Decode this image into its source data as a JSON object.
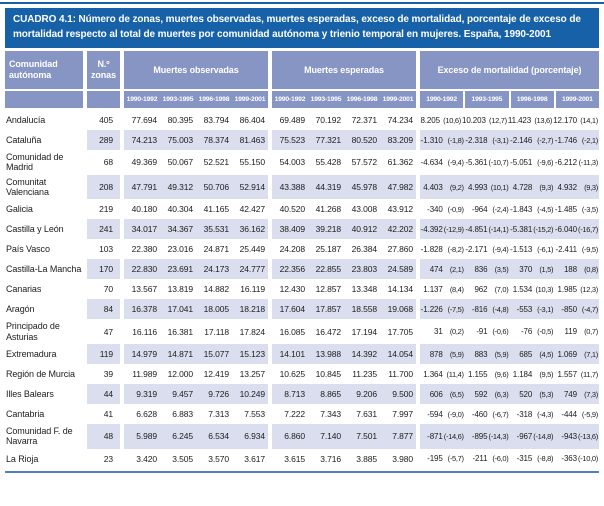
{
  "title": "CUADRO 4.1: Número de zonas, muertes observadas, muertes esperadas, exceso de mortalidad, porcentaje de exceso de mortalidad respecto al total de muertes por comunidad autónoma y trienio temporal en mujeres. España, 1990-2001",
  "colors": {
    "title_bar": "#1761A8",
    "header_cells": "#8795C5",
    "row_stripe": "#DADEEE",
    "top_rule": "#1761A8",
    "bottom_line": "#4D7EBD"
  },
  "table": {
    "col_headers": {
      "community": "Comunidad autónoma",
      "zones": "N.º zonas",
      "observed": "Muertes observadas",
      "expected": "Muertes esperadas",
      "excess": "Exceso de mortalidad (porcentaje)"
    },
    "periods": [
      "1990-1992",
      "1993-1995",
      "1996-1998",
      "1999-2001"
    ],
    "rows": [
      {
        "name": "Andalucía",
        "zones": "405",
        "observed": [
          "77.694",
          "80.395",
          "83.794",
          "86.404"
        ],
        "expected": [
          "69.489",
          "70.192",
          "72.371",
          "74.234"
        ],
        "excess": [
          [
            "8.205",
            "(10,6)"
          ],
          [
            "10.203",
            "(12,7)"
          ],
          [
            "11.423",
            "(13,6)"
          ],
          [
            "12.170",
            "(14,1)"
          ]
        ]
      },
      {
        "name": "Cataluña",
        "zones": "289",
        "observed": [
          "74.213",
          "75.003",
          "78.374",
          "81.463"
        ],
        "expected": [
          "75.523",
          "77.321",
          "80.520",
          "83.209"
        ],
        "excess": [
          [
            "-1.310",
            "(-1,8)"
          ],
          [
            "-2.318",
            "(-3,1)"
          ],
          [
            "-2.146",
            "(-2,7)"
          ],
          [
            "-1.746",
            "(-2,1)"
          ]
        ]
      },
      {
        "name": "Comunidad de Madrid",
        "zones": "68",
        "observed": [
          "49.369",
          "50.067",
          "52.521",
          "55.150"
        ],
        "expected": [
          "54.003",
          "55.428",
          "57.572",
          "61.362"
        ],
        "excess": [
          [
            "-4.634",
            "(-9,4)"
          ],
          [
            "-5.361",
            "(-10,7)"
          ],
          [
            "-5.051",
            "(-9,6)"
          ],
          [
            "-6.212",
            "(-11,3)"
          ]
        ]
      },
      {
        "name": "Comunitat Valenciana",
        "zones": "208",
        "observed": [
          "47.791",
          "49.312",
          "50.706",
          "52.914"
        ],
        "expected": [
          "43.388",
          "44.319",
          "45.978",
          "47.982"
        ],
        "excess": [
          [
            "4.403",
            "(9,2)"
          ],
          [
            "4.993",
            "(10,1)"
          ],
          [
            "4.728",
            "(9,3)"
          ],
          [
            "4.932",
            "(9,3)"
          ]
        ]
      },
      {
        "name": "Galicia",
        "zones": "219",
        "observed": [
          "40.180",
          "40.304",
          "41.165",
          "42.427"
        ],
        "expected": [
          "40.520",
          "41.268",
          "43.008",
          "43.912"
        ],
        "excess": [
          [
            "-340",
            "(-0,9)"
          ],
          [
            "-964",
            "(-2,4)"
          ],
          [
            "-1.843",
            "(-4,5)"
          ],
          [
            "-1.485",
            "(-3,5)"
          ]
        ]
      },
      {
        "name": "Castilla y León",
        "zones": "241",
        "observed": [
          "34.017",
          "34.367",
          "35.531",
          "36.162"
        ],
        "expected": [
          "38.409",
          "39.218",
          "40.912",
          "42.202"
        ],
        "excess": [
          [
            "-4.392",
            "(-12,9)"
          ],
          [
            "-4.851",
            "(-14,1)"
          ],
          [
            "-5.381",
            "(-15,2)"
          ],
          [
            "-6.040",
            "(-16,7)"
          ]
        ]
      },
      {
        "name": "País Vasco",
        "zones": "103",
        "observed": [
          "22.380",
          "23.016",
          "24.871",
          "25.449"
        ],
        "expected": [
          "24.208",
          "25.187",
          "26.384",
          "27.860"
        ],
        "excess": [
          [
            "-1.828",
            "(-8,2)"
          ],
          [
            "-2.171",
            "(-9,4)"
          ],
          [
            "-1.513",
            "(-6,1)"
          ],
          [
            "-2.411",
            "(-9,5)"
          ]
        ]
      },
      {
        "name": "Castilla-La Mancha",
        "zones": "170",
        "observed": [
          "22.830",
          "23.691",
          "24.173",
          "24.777"
        ],
        "expected": [
          "22.356",
          "22.855",
          "23.803",
          "24.589"
        ],
        "excess": [
          [
            "474",
            "(2,1)"
          ],
          [
            "836",
            "(3,5)"
          ],
          [
            "370",
            "(1,5)"
          ],
          [
            "188",
            "(0,8)"
          ]
        ]
      },
      {
        "name": "Canarias",
        "zones": "70",
        "observed": [
          "13.567",
          "13.819",
          "14.882",
          "16.119"
        ],
        "expected": [
          "12.430",
          "12.857",
          "13.348",
          "14.134"
        ],
        "excess": [
          [
            "1.137",
            "(8,4)"
          ],
          [
            "962",
            "(7,0)"
          ],
          [
            "1.534",
            "(10,3)"
          ],
          [
            "1.985",
            "(12,3)"
          ]
        ]
      },
      {
        "name": "Aragón",
        "zones": "84",
        "observed": [
          "16.378",
          "17.041",
          "18.005",
          "18.218"
        ],
        "expected": [
          "17.604",
          "17.857",
          "18.558",
          "19.068"
        ],
        "excess": [
          [
            "-1.226",
            "(-7,5)"
          ],
          [
            "-816",
            "(-4,8)"
          ],
          [
            "-553",
            "(-3,1)"
          ],
          [
            "-850",
            "(-4,7)"
          ]
        ]
      },
      {
        "name": "Principado de Asturias",
        "zones": "47",
        "observed": [
          "16.116",
          "16.381",
          "17.118",
          "17.824"
        ],
        "expected": [
          "16.085",
          "16.472",
          "17.194",
          "17.705"
        ],
        "excess": [
          [
            "31",
            "(0,2)"
          ],
          [
            "-91",
            "(-0,6)"
          ],
          [
            "-76",
            "(-0,5)"
          ],
          [
            "119",
            "(0,7)"
          ]
        ]
      },
      {
        "name": "Extremadura",
        "zones": "119",
        "observed": [
          "14.979",
          "14.871",
          "15.077",
          "15.123"
        ],
        "expected": [
          "14.101",
          "13.988",
          "14.392",
          "14.054"
        ],
        "excess": [
          [
            "878",
            "(5,9)"
          ],
          [
            "883",
            "(5,9)"
          ],
          [
            "685",
            "(4,5)"
          ],
          [
            "1.069",
            "(7,1)"
          ]
        ]
      },
      {
        "name": "Región de Murcia",
        "zones": "39",
        "observed": [
          "11.989",
          "12.000",
          "12.419",
          "13.257"
        ],
        "expected": [
          "10.625",
          "10.845",
          "11.235",
          "11.700"
        ],
        "excess": [
          [
            "1.364",
            "(11,4)"
          ],
          [
            "1.155",
            "(9,6)"
          ],
          [
            "1.184",
            "(9,5)"
          ],
          [
            "1.557",
            "(11,7)"
          ]
        ]
      },
      {
        "name": "Illes Balears",
        "zones": "44",
        "observed": [
          "9.319",
          "9.457",
          "9.726",
          "10.249"
        ],
        "expected": [
          "8.713",
          "8.865",
          "9.206",
          "9.500"
        ],
        "excess": [
          [
            "606",
            "(6,5)"
          ],
          [
            "592",
            "(6,3)"
          ],
          [
            "520",
            "(5,3)"
          ],
          [
            "749",
            "(7,3)"
          ]
        ]
      },
      {
        "name": "Cantabria",
        "zones": "41",
        "observed": [
          "6.628",
          "6.883",
          "7.313",
          "7.553"
        ],
        "expected": [
          "7.222",
          "7.343",
          "7.631",
          "7.997"
        ],
        "excess": [
          [
            "-594",
            "(-9,0)"
          ],
          [
            "-460",
            "(-6,7)"
          ],
          [
            "-318",
            "(-4,3)"
          ],
          [
            "-444",
            "(-5,9)"
          ]
        ]
      },
      {
        "name": "Comunidad F. de Navarra",
        "zones": "48",
        "observed": [
          "5.989",
          "6.245",
          "6.534",
          "6.934"
        ],
        "expected": [
          "6.860",
          "7.140",
          "7.501",
          "7.877"
        ],
        "excess": [
          [
            "-871",
            "(-14,6)"
          ],
          [
            "-895",
            "(-14,3)"
          ],
          [
            "-967",
            "(-14,8)"
          ],
          [
            "-943",
            "(-13,6)"
          ]
        ]
      },
      {
        "name": "La Rioja",
        "zones": "23",
        "observed": [
          "3.420",
          "3.505",
          "3.570",
          "3.617"
        ],
        "expected": [
          "3.615",
          "3.716",
          "3.885",
          "3.980"
        ],
        "excess": [
          [
            "-195",
            "(-5,7)"
          ],
          [
            "-211",
            "(-6,0)"
          ],
          [
            "-315",
            "(-8,8)"
          ],
          [
            "-363",
            "(-10,0)"
          ]
        ]
      }
    ]
  }
}
